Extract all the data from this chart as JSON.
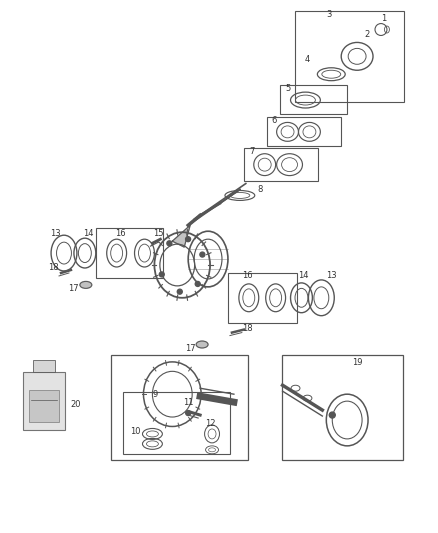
{
  "bg_color": "#ffffff",
  "line_color": "#555555",
  "fig_width": 4.38,
  "fig_height": 5.33,
  "dpi": 100
}
